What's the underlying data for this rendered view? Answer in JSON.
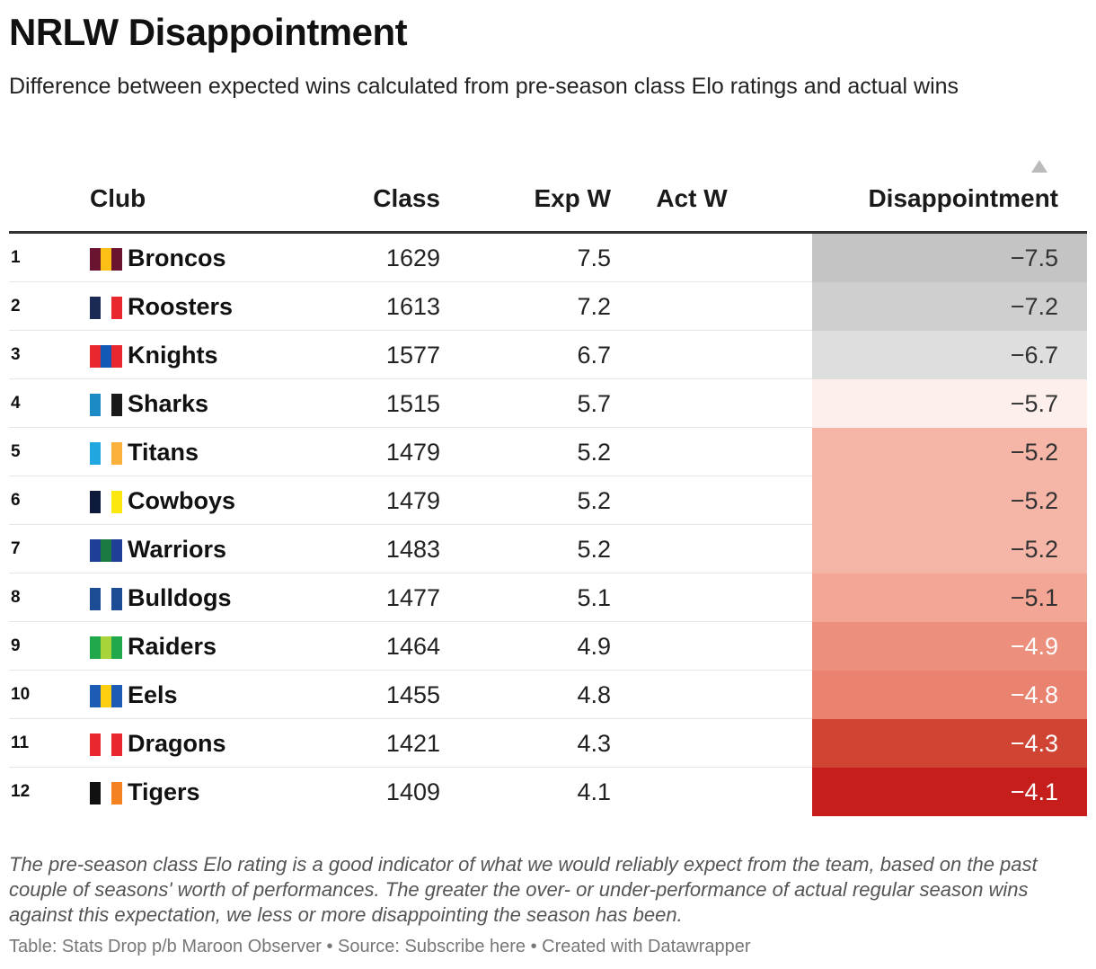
{
  "title": "NRLW Disappointment",
  "subtitle": "Difference between expected wins calculated from pre-season class Elo ratings and actual wins",
  "note": "The pre-season class Elo rating is a good indicator of what we would reliably expect from the team, based on the past couple of seasons' worth of performances. The greater the over- or under-performance of actual regular season wins against this expectation, we less or more disappointing the season has been.",
  "footer": "Table: Stats Drop p/b Maroon Observer • Source: Subscribe here • Created with Datawrapper",
  "chart_data": {
    "type": "table",
    "columns": [
      "Club",
      "Class",
      "Exp W",
      "Act W",
      "Disappointment"
    ],
    "sorted_by": "Disappointment",
    "sort_direction": "ascending",
    "rows": [
      {
        "rank": "1",
        "club": "Broncos",
        "class": "1629",
        "exp_w": "7.5",
        "act_w": "",
        "disappointment": "−7.5",
        "value": -7.5,
        "club_colors": [
          "#6b1430",
          "#fbbf15",
          "#6b1430"
        ],
        "cell_color": "#c4c4c4",
        "text_color": "#333333"
      },
      {
        "rank": "2",
        "club": "Roosters",
        "class": "1613",
        "exp_w": "7.2",
        "act_w": "",
        "disappointment": "−7.2",
        "value": -7.2,
        "club_colors": [
          "#1b2a55",
          "#ffffff",
          "#e8282e"
        ],
        "cell_color": "#cfcfcf",
        "text_color": "#333333"
      },
      {
        "rank": "3",
        "club": "Knights",
        "class": "1577",
        "exp_w": "6.7",
        "act_w": "",
        "disappointment": "−6.7",
        "value": -6.7,
        "club_colors": [
          "#e8282e",
          "#1458b5",
          "#e8282e"
        ],
        "cell_color": "#dedede",
        "text_color": "#333333"
      },
      {
        "rank": "4",
        "club": "Sharks",
        "class": "1515",
        "exp_w": "5.7",
        "act_w": "",
        "disappointment": "−5.7",
        "value": -5.7,
        "club_colors": [
          "#1c8bc5",
          "#ffffff",
          "#1a1a1a"
        ],
        "cell_color": "#fdf0ec",
        "text_color": "#333333"
      },
      {
        "rank": "5",
        "club": "Titans",
        "class": "1479",
        "exp_w": "5.2",
        "act_w": "",
        "disappointment": "−5.2",
        "value": -5.2,
        "club_colors": [
          "#21a7e0",
          "#ffffff",
          "#fbb03b"
        ],
        "cell_color": "#f6b6a7",
        "text_color": "#333333"
      },
      {
        "rank": "6",
        "club": "Cowboys",
        "class": "1479",
        "exp_w": "5.2",
        "act_w": "",
        "disappointment": "−5.2",
        "value": -5.2,
        "club_colors": [
          "#0d1a3c",
          "#ffffff",
          "#fce80f"
        ],
        "cell_color": "#f6b6a7",
        "text_color": "#333333"
      },
      {
        "rank": "7",
        "club": "Warriors",
        "class": "1483",
        "exp_w": "5.2",
        "act_w": "",
        "disappointment": "−5.2",
        "value": -5.2,
        "club_colors": [
          "#1d3f95",
          "#1a7a3f",
          "#1d3f95"
        ],
        "cell_color": "#f6b6a7",
        "text_color": "#333333"
      },
      {
        "rank": "8",
        "club": "Bulldogs",
        "class": "1477",
        "exp_w": "5.1",
        "act_w": "",
        "disappointment": "−5.1",
        "value": -5.1,
        "club_colors": [
          "#1b4c94",
          "#ffffff",
          "#1b4c94"
        ],
        "cell_color": "#f3a696",
        "text_color": "#333333"
      },
      {
        "rank": "9",
        "club": "Raiders",
        "class": "1464",
        "exp_w": "4.9",
        "act_w": "",
        "disappointment": "−4.9",
        "value": -4.9,
        "club_colors": [
          "#21a84a",
          "#a8d43a",
          "#21a84a"
        ],
        "cell_color": "#ec8f7c",
        "text_color": "#ffffff"
      },
      {
        "rank": "10",
        "club": "Eels",
        "class": "1455",
        "exp_w": "4.8",
        "act_w": "",
        "disappointment": "−4.8",
        "value": -4.8,
        "club_colors": [
          "#1d5cb4",
          "#fcd011",
          "#1d5cb4"
        ],
        "cell_color": "#e9836f",
        "text_color": "#ffffff"
      },
      {
        "rank": "11",
        "club": "Dragons",
        "class": "1421",
        "exp_w": "4.3",
        "act_w": "",
        "disappointment": "−4.3",
        "value": -4.3,
        "club_colors": [
          "#e8282e",
          "#ffffff",
          "#e8282e"
        ],
        "cell_color": "#d04434",
        "text_color": "#ffffff"
      },
      {
        "rank": "12",
        "club": "Tigers",
        "class": "1409",
        "exp_w": "4.1",
        "act_w": "",
        "disappointment": "−4.1",
        "value": -4.1,
        "club_colors": [
          "#111111",
          "#ffffff",
          "#f58220"
        ],
        "cell_color": "#c61d1d",
        "text_color": "#ffffff"
      }
    ]
  }
}
